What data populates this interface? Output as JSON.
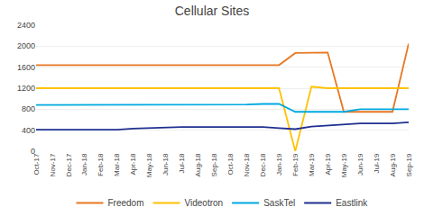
{
  "chart_data": {
    "type": "line",
    "title": "Cellular Sites",
    "categories": [
      "Oct-17",
      "Nov-17",
      "Dec-17",
      "Jan-18",
      "Feb-18",
      "Mar-18",
      "Apr-18",
      "May-18",
      "Jun-18",
      "Jul-18",
      "Aug-18",
      "Sep-18",
      "Oct-18",
      "Nov-18",
      "Dec-18",
      "Jan-19",
      "Feb-19",
      "Mar-19",
      "Apr-19",
      "May-19",
      "Jun-19",
      "Jul-19",
      "Aug-19",
      "Sep-19"
    ],
    "series": [
      {
        "name": "Freedom",
        "color": "#E87722",
        "values": [
          1640,
          1640,
          1640,
          1640,
          1640,
          1640,
          1640,
          1640,
          1640,
          1640,
          1640,
          1640,
          1640,
          1640,
          1640,
          1640,
          1870,
          1880,
          1880,
          750,
          750,
          750,
          750,
          2050
        ]
      },
      {
        "name": "Videotron",
        "color": "#FFC200",
        "values": [
          1200,
          1200,
          1200,
          1200,
          1200,
          1200,
          1200,
          1200,
          1200,
          1200,
          1200,
          1200,
          1200,
          1200,
          1200,
          1200,
          0,
          1230,
          1200,
          1200,
          1200,
          1200,
          1200,
          1200
        ]
      },
      {
        "name": "SaskTel",
        "color": "#00A9E0",
        "values": [
          880,
          880,
          880,
          880,
          880,
          890,
          890,
          890,
          890,
          890,
          890,
          890,
          890,
          890,
          900,
          900,
          750,
          750,
          750,
          750,
          800,
          800,
          800,
          800
        ]
      },
      {
        "name": "Eastlink",
        "color": "#1F3090",
        "values": [
          410,
          410,
          410,
          410,
          410,
          410,
          430,
          440,
          460,
          460,
          460,
          460,
          460,
          460,
          460,
          440,
          420,
          470,
          490,
          520,
          530,
          530,
          530,
          550
        ]
      }
    ],
    "ylim": [
      0,
      2400
    ],
    "yticks": [
      0,
      400,
      800,
      1200,
      1600,
      2000,
      2400
    ],
    "grid": true,
    "legend": "bottom"
  }
}
